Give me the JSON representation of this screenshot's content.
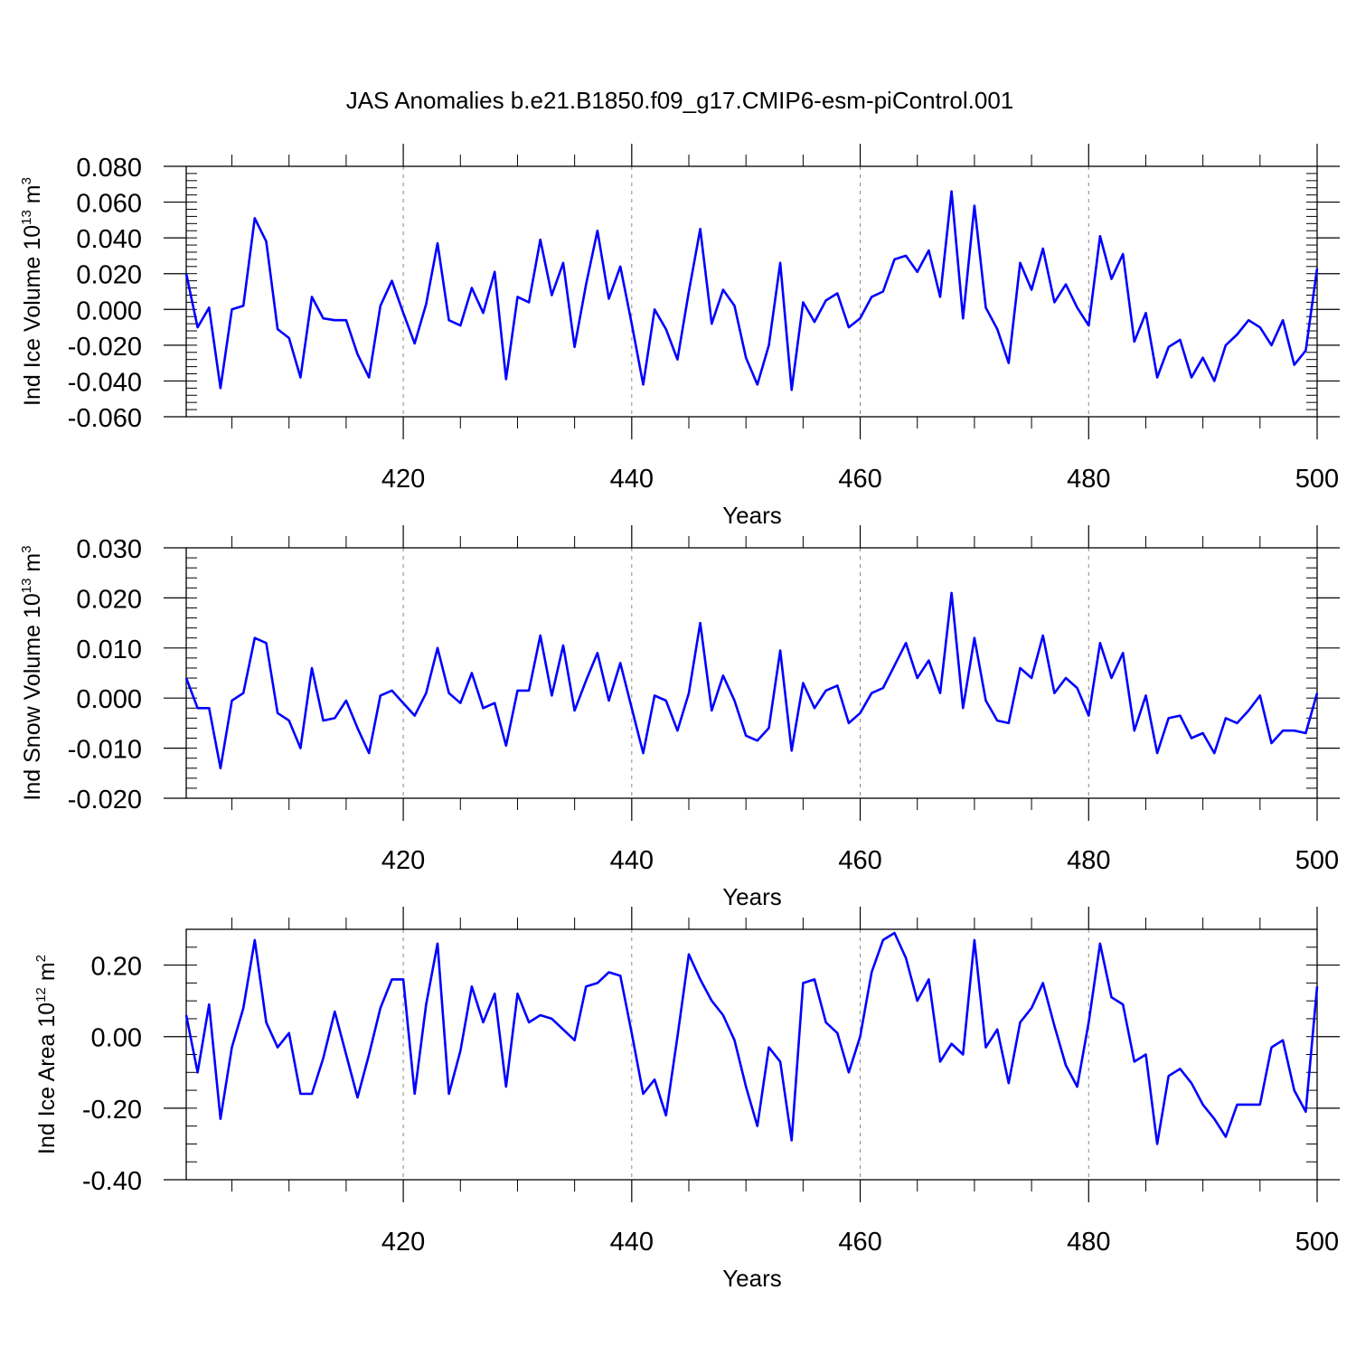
{
  "title": "JAS Anomalies b.e21.B1850.f09_g17.CMIP6-esm-piControl.001",
  "colors": {
    "line": "#0000ff",
    "axis": "#000000",
    "grid": "#888888"
  },
  "chart_data": [
    {
      "type": "line",
      "id": "ice-volume",
      "title": "JAS Anomalies b.e21.B1850.f09_g17.CMIP6-esm-piControl.001",
      "xlabel": "Years",
      "ylabel": {
        "main": "Ind Ice Volume 10",
        "sup": "13",
        "unit": " m",
        "unit_sup": "3"
      },
      "xlim": [
        401,
        500
      ],
      "ylim": [
        -0.06,
        0.08
      ],
      "x_ticks": [
        420,
        440,
        460,
        480,
        500
      ],
      "x_tick_labels": [
        "420",
        "440",
        "460",
        "480",
        "500"
      ],
      "y_ticks": [
        -0.06,
        -0.04,
        -0.02,
        0,
        0.02,
        0.04,
        0.06,
        0.08
      ],
      "y_tick_labels": [
        "-0.060",
        "-0.040",
        "-0.020",
        "0.000",
        "0.020",
        "0.040",
        "0.060",
        "0.080"
      ],
      "y_minor_step": 0.004,
      "grid_x": [
        420,
        440,
        460,
        480
      ],
      "x_start": 401,
      "series": [
        {
          "name": "Ind Ice Volume",
          "values": [
            0.02,
            -0.01,
            0.001,
            -0.044,
            0.0,
            0.002,
            0.051,
            0.038,
            -0.011,
            -0.016,
            -0.038,
            0.007,
            -0.005,
            -0.006,
            -0.006,
            -0.025,
            -0.038,
            0.002,
            0.016,
            -0.002,
            -0.019,
            0.003,
            0.037,
            -0.006,
            -0.009,
            0.012,
            -0.002,
            0.021,
            -0.039,
            0.007,
            0.004,
            0.039,
            0.008,
            0.026,
            -0.021,
            0.014,
            0.044,
            0.006,
            0.024,
            -0.008,
            -0.042,
            0.0,
            -0.011,
            -0.028,
            0.01,
            0.045,
            -0.008,
            0.011,
            0.002,
            -0.027,
            -0.042,
            -0.02,
            0.026,
            -0.045,
            0.004,
            -0.007,
            0.005,
            0.009,
            -0.01,
            -0.005,
            0.007,
            0.01,
            0.028,
            0.03,
            0.021,
            0.033,
            0.007,
            0.066,
            -0.005,
            0.058,
            0.001,
            -0.011,
            -0.03,
            0.026,
            0.011,
            0.034,
            0.004,
            0.014,
            0.001,
            -0.009,
            0.041,
            0.017,
            0.031,
            -0.018,
            -0.002,
            -0.038,
            -0.021,
            -0.017,
            -0.038,
            -0.027,
            -0.04,
            -0.02,
            -0.014,
            -0.006,
            -0.01,
            -0.02,
            -0.006,
            -0.031,
            -0.023,
            0.023
          ]
        }
      ]
    },
    {
      "type": "line",
      "id": "snow-volume",
      "xlabel": "Years",
      "ylabel": {
        "main": "Ind Snow Volume 10",
        "sup": "13",
        "unit": " m",
        "unit_sup": "3"
      },
      "xlim": [
        401,
        500
      ],
      "ylim": [
        -0.02,
        0.03
      ],
      "x_ticks": [
        420,
        440,
        460,
        480,
        500
      ],
      "x_tick_labels": [
        "420",
        "440",
        "460",
        "480",
        "500"
      ],
      "y_ticks": [
        -0.02,
        -0.01,
        0,
        0.01,
        0.02,
        0.03
      ],
      "y_tick_labels": [
        "-0.020",
        "-0.010",
        "0.000",
        "0.010",
        "0.020",
        "0.030"
      ],
      "y_minor_step": 0.002,
      "grid_x": [
        420,
        440,
        460,
        480
      ],
      "x_start": 401,
      "series": [
        {
          "name": "Ind Snow Volume",
          "values": [
            0.004,
            -0.002,
            -0.002,
            -0.014,
            -0.0005,
            0.001,
            0.012,
            0.011,
            -0.003,
            -0.0045,
            -0.01,
            0.006,
            -0.0045,
            -0.004,
            -0.0005,
            -0.006,
            -0.011,
            0.0005,
            0.0015,
            -0.001,
            -0.0035,
            0.001,
            0.01,
            0.001,
            -0.001,
            0.005,
            -0.002,
            -0.001,
            -0.0095,
            0.0015,
            0.0015,
            0.0125,
            0.0005,
            0.0105,
            -0.0025,
            0.0035,
            0.009,
            -0.0005,
            0.007,
            -0.002,
            -0.011,
            0.0005,
            -0.0005,
            -0.0065,
            0.001,
            0.015,
            -0.0025,
            0.0045,
            -0.0005,
            -0.0075,
            -0.0085,
            -0.006,
            0.0095,
            -0.0105,
            0.003,
            -0.002,
            0.0015,
            0.0025,
            -0.005,
            -0.003,
            0.001,
            0.002,
            0.0065,
            0.011,
            0.004,
            0.0075,
            0.001,
            0.021,
            -0.002,
            0.012,
            -0.0005,
            -0.0045,
            -0.005,
            0.006,
            0.004,
            0.0125,
            0.001,
            0.004,
            0.002,
            -0.0035,
            0.011,
            0.004,
            0.009,
            -0.0065,
            0.0005,
            -0.011,
            -0.004,
            -0.0035,
            -0.008,
            -0.007,
            -0.011,
            -0.004,
            -0.005,
            -0.0025,
            0.0005,
            -0.009,
            -0.0065,
            -0.0065,
            -0.007,
            0.001
          ]
        }
      ]
    },
    {
      "type": "line",
      "id": "ice-area",
      "xlabel": "Years",
      "ylabel": {
        "main": "Ind Ice Area 10",
        "sup": "12",
        "unit": " m",
        "unit_sup": "2"
      },
      "xlim": [
        401,
        500
      ],
      "ylim": [
        -0.4,
        0.3
      ],
      "x_ticks": [
        420,
        440,
        460,
        480,
        500
      ],
      "x_tick_labels": [
        "420",
        "440",
        "460",
        "480",
        "500"
      ],
      "y_ticks": [
        -0.4,
        -0.2,
        0,
        0.2
      ],
      "y_tick_labels": [
        "-0.40",
        "-0.20",
        "0.00",
        "0.20"
      ],
      "y_minor_step": 0.05,
      "grid_x": [
        420,
        440,
        460,
        480
      ],
      "x_start": 401,
      "series": [
        {
          "name": "Ind Ice Area",
          "values": [
            0.06,
            -0.1,
            0.09,
            -0.23,
            -0.03,
            0.08,
            0.27,
            0.04,
            -0.03,
            0.01,
            -0.16,
            -0.16,
            -0.06,
            0.07,
            -0.05,
            -0.17,
            -0.05,
            0.08,
            0.16,
            0.16,
            -0.16,
            0.09,
            0.26,
            -0.16,
            -0.04,
            0.14,
            0.04,
            0.12,
            -0.14,
            0.12,
            0.04,
            0.06,
            0.05,
            0.02,
            -0.01,
            0.14,
            0.15,
            0.18,
            0.17,
            0.01,
            -0.16,
            -0.12,
            -0.22,
            0.0,
            0.23,
            0.16,
            0.1,
            0.06,
            -0.01,
            -0.14,
            -0.25,
            -0.03,
            -0.07,
            -0.29,
            0.15,
            0.16,
            0.04,
            0.01,
            -0.1,
            0.0,
            0.18,
            0.27,
            0.29,
            0.22,
            0.1,
            0.16,
            -0.07,
            -0.02,
            -0.05,
            0.27,
            -0.03,
            0.02,
            -0.13,
            0.04,
            0.08,
            0.15,
            0.03,
            -0.08,
            -0.14,
            0.04,
            0.26,
            0.11,
            0.09,
            -0.07,
            -0.05,
            -0.3,
            -0.11,
            -0.09,
            -0.13,
            -0.19,
            -0.23,
            -0.28,
            -0.19,
            -0.19,
            -0.19,
            -0.03,
            -0.01,
            -0.15,
            -0.21,
            0.14
          ]
        }
      ]
    }
  ]
}
